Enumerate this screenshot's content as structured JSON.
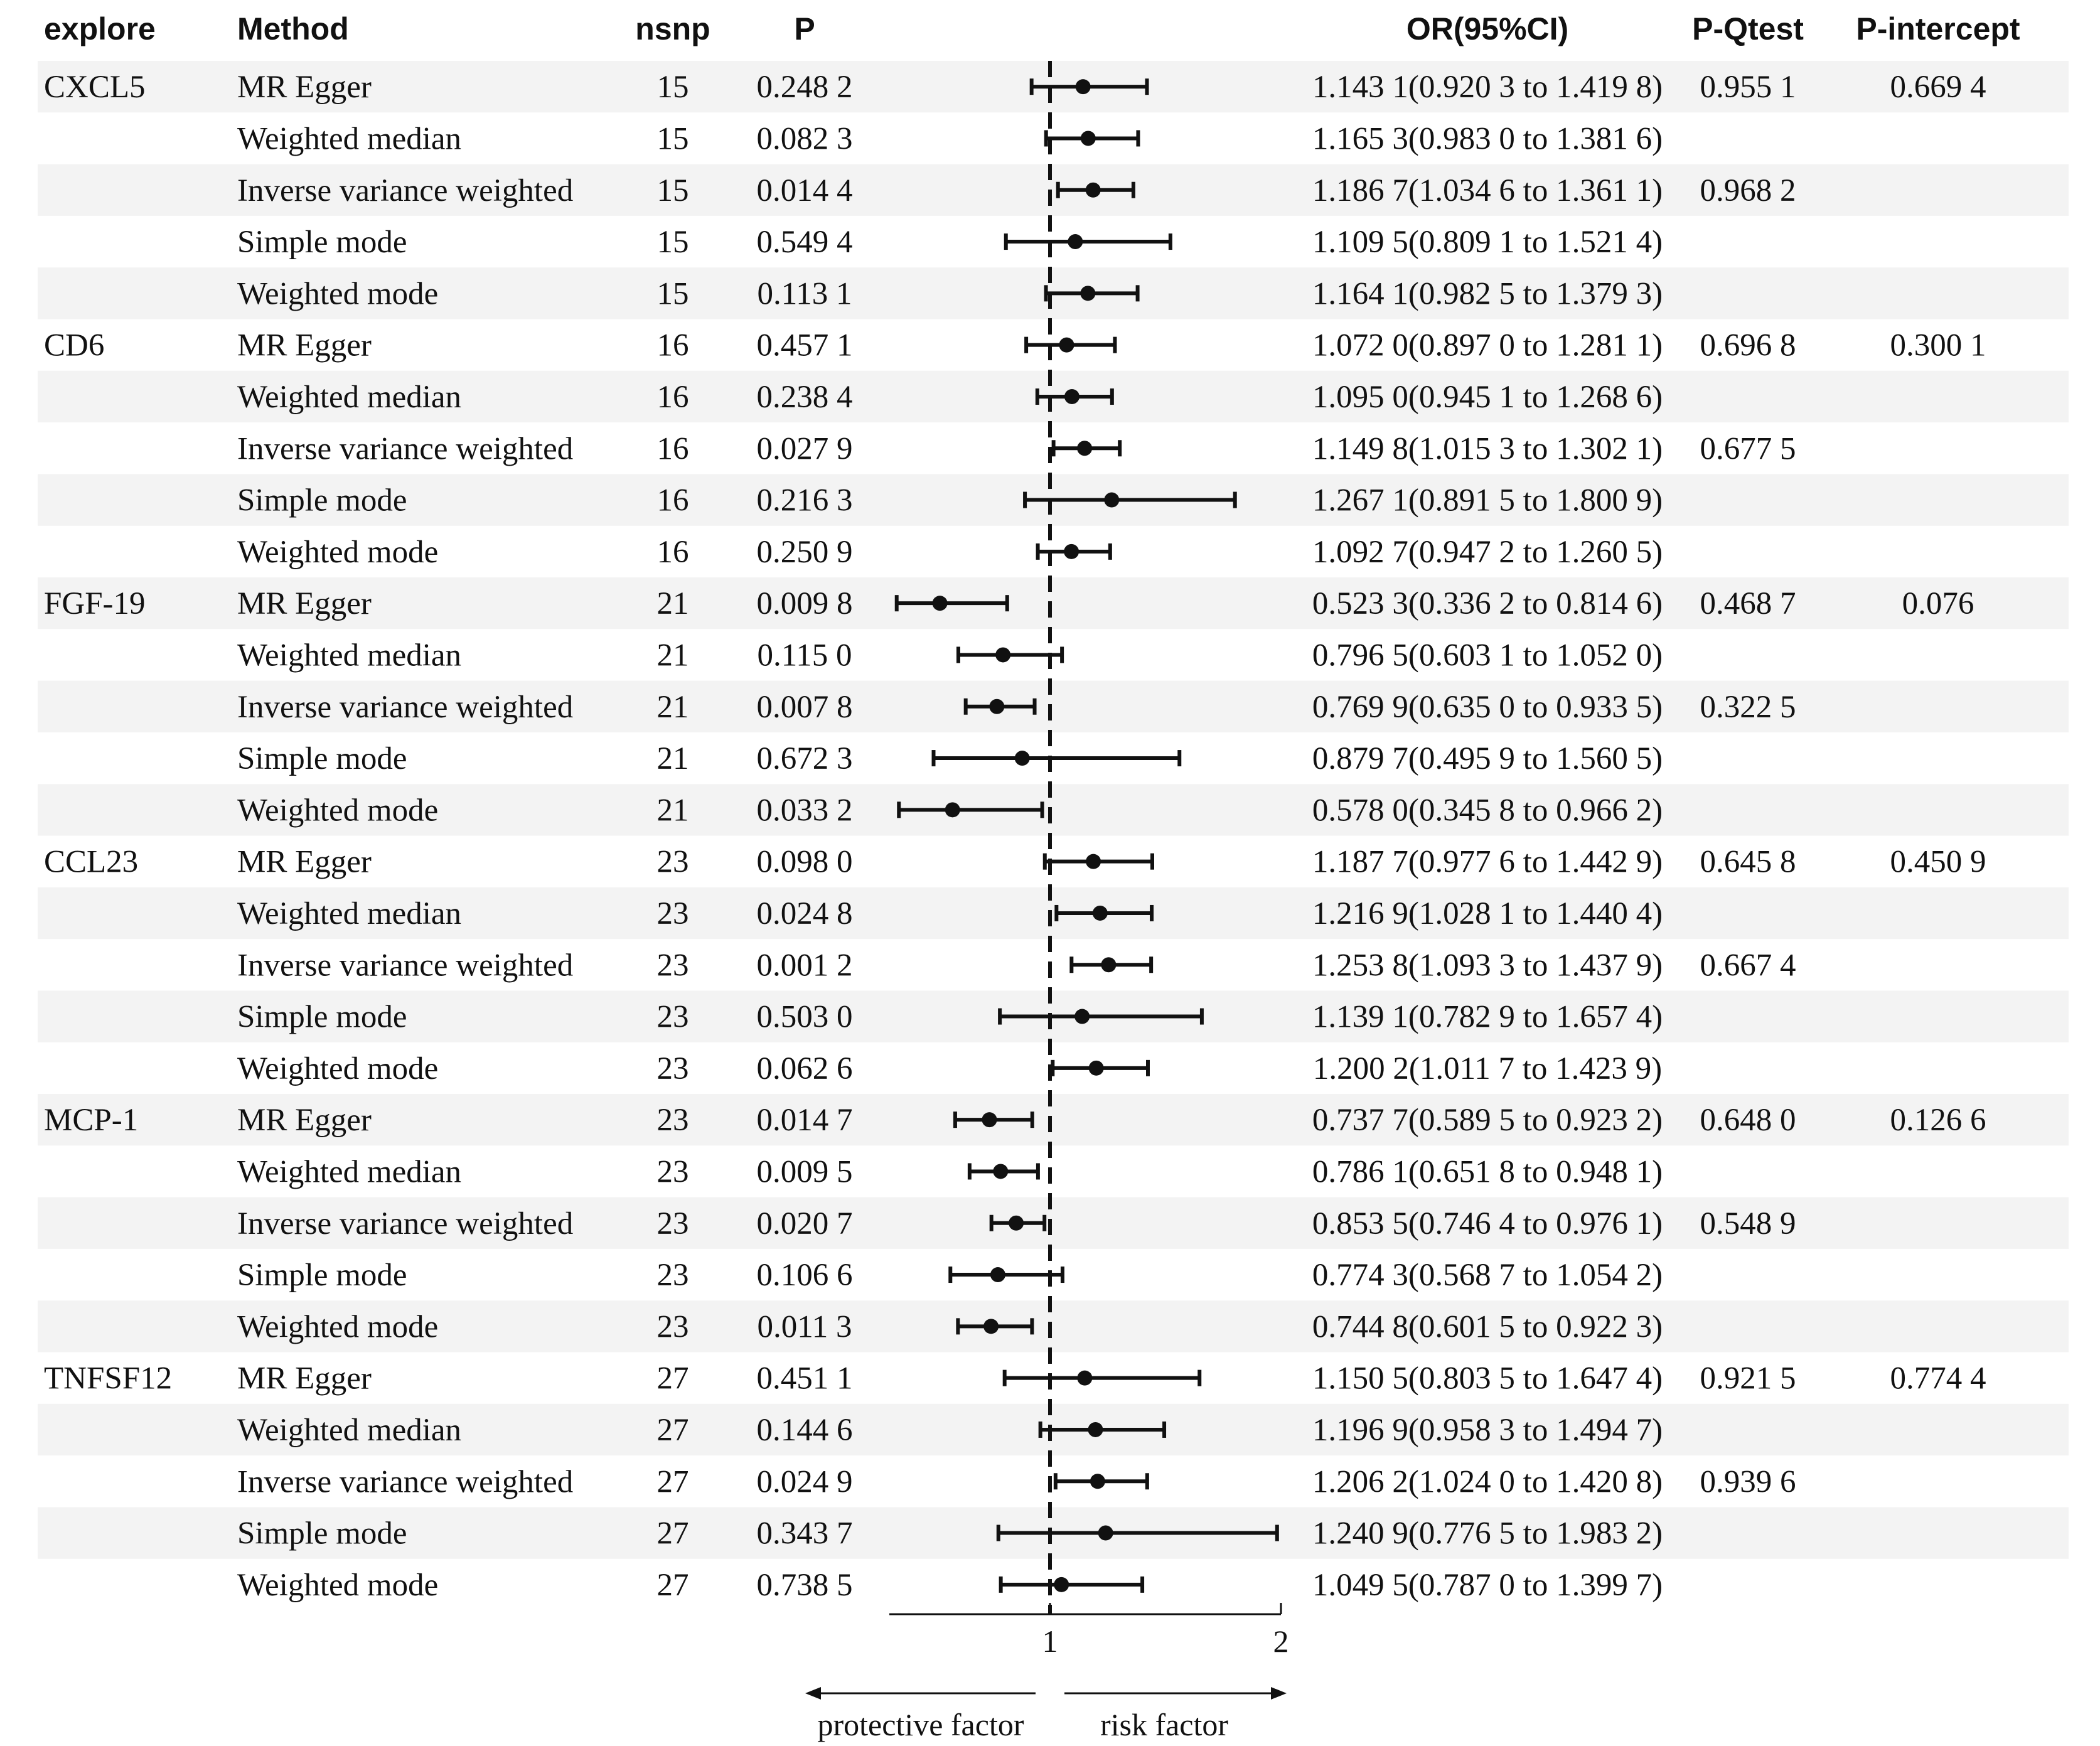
{
  "headers": {
    "explore": "explore",
    "method": "Method",
    "nsnp": "nsnp",
    "p": "P",
    "or": "OR(95%CI)",
    "pq": "P-Qtest",
    "pi": "P-intercept"
  },
  "rows": [
    {
      "explore": "CXCL5",
      "method": "MR Egger",
      "nsnp": "15",
      "p": "0.248 2",
      "or_text": "1.143 1(0.920 3 to 1.419 8)",
      "pq": "0.955 1",
      "pi": "0.669 4"
    },
    {
      "explore": "",
      "method": "Weighted median",
      "nsnp": "15",
      "p": "0.082 3",
      "or_text": "1.165 3(0.983 0 to 1.381 6)",
      "pq": "",
      "pi": ""
    },
    {
      "explore": "",
      "method": "Inverse variance weighted",
      "nsnp": "15",
      "p": "0.014 4",
      "or_text": "1.186 7(1.034 6 to 1.361 1)",
      "pq": "0.968 2",
      "pi": ""
    },
    {
      "explore": "",
      "method": "Simple mode",
      "nsnp": "15",
      "p": "0.549 4",
      "or_text": "1.109 5(0.809 1 to 1.521 4)",
      "pq": "",
      "pi": ""
    },
    {
      "explore": "",
      "method": "Weighted mode",
      "nsnp": "15",
      "p": "0.113 1",
      "or_text": "1.164 1(0.982 5 to 1.379 3)",
      "pq": "",
      "pi": ""
    },
    {
      "explore": "CD6",
      "method": "MR Egger",
      "nsnp": "16",
      "p": "0.457 1",
      "or_text": "1.072 0(0.897 0 to 1.281 1)",
      "pq": "0.696 8",
      "pi": "0.300 1"
    },
    {
      "explore": "",
      "method": "Weighted median",
      "nsnp": "16",
      "p": "0.238 4",
      "or_text": "1.095 0(0.945 1 to 1.268 6)",
      "pq": "",
      "pi": ""
    },
    {
      "explore": "",
      "method": "Inverse variance weighted",
      "nsnp": "16",
      "p": "0.027 9",
      "or_text": "1.149 8(1.015 3 to 1.302 1)",
      "pq": "0.677 5",
      "pi": ""
    },
    {
      "explore": "",
      "method": "Simple mode",
      "nsnp": "16",
      "p": "0.216 3",
      "or_text": "1.267 1(0.891 5 to 1.800 9)",
      "pq": "",
      "pi": ""
    },
    {
      "explore": "",
      "method": "Weighted mode",
      "nsnp": "16",
      "p": "0.250 9",
      "or_text": "1.092 7(0.947 2 to 1.260 5)",
      "pq": "",
      "pi": ""
    },
    {
      "explore": "FGF-19",
      "method": "MR Egger",
      "nsnp": "21",
      "p": "0.009 8",
      "or_text": "0.523 3(0.336 2 to 0.814 6)",
      "pq": "0.468 7",
      "pi": "0.076"
    },
    {
      "explore": "",
      "method": "Weighted median",
      "nsnp": "21",
      "p": "0.115 0",
      "or_text": "0.796 5(0.603 1 to 1.052 0)",
      "pq": "",
      "pi": ""
    },
    {
      "explore": "",
      "method": "Inverse variance weighted",
      "nsnp": "21",
      "p": "0.007 8",
      "or_text": "0.769 9(0.635 0 to 0.933 5)",
      "pq": "0.322 5",
      "pi": ""
    },
    {
      "explore": "",
      "method": "Simple mode",
      "nsnp": "21",
      "p": "0.672 3",
      "or_text": "0.879 7(0.495 9 to 1.560 5)",
      "pq": "",
      "pi": ""
    },
    {
      "explore": "",
      "method": "Weighted mode",
      "nsnp": "21",
      "p": "0.033 2",
      "or_text": "0.578 0(0.345 8 to 0.966 2)",
      "pq": "",
      "pi": ""
    },
    {
      "explore": "CCL23",
      "method": "MR Egger",
      "nsnp": "23",
      "p": "0.098 0",
      "or_text": "1.187 7(0.977 6 to 1.442 9)",
      "pq": "0.645 8",
      "pi": "0.450 9"
    },
    {
      "explore": "",
      "method": "Weighted median",
      "nsnp": "23",
      "p": "0.024 8",
      "or_text": "1.216 9(1.028 1 to 1.440 4)",
      "pq": "",
      "pi": ""
    },
    {
      "explore": "",
      "method": "Inverse variance weighted",
      "nsnp": "23",
      "p": "0.001 2",
      "or_text": "1.253 8(1.093 3 to 1.437 9)",
      "pq": "0.667 4",
      "pi": ""
    },
    {
      "explore": "",
      "method": "Simple mode",
      "nsnp": "23",
      "p": "0.503 0",
      "or_text": "1.139 1(0.782 9 to 1.657 4)",
      "pq": "",
      "pi": ""
    },
    {
      "explore": "",
      "method": "Weighted mode",
      "nsnp": "23",
      "p": "0.062 6",
      "or_text": "1.200 2(1.011 7 to 1.423 9)",
      "pq": "",
      "pi": ""
    },
    {
      "explore": "MCP-1",
      "method": "MR Egger",
      "nsnp": "23",
      "p": "0.014 7",
      "or_text": "0.737 7(0.589 5 to 0.923 2)",
      "pq": "0.648 0",
      "pi": "0.126 6"
    },
    {
      "explore": "",
      "method": "Weighted median",
      "nsnp": "23",
      "p": "0.009 5",
      "or_text": "0.786 1(0.651 8 to 0.948 1)",
      "pq": "",
      "pi": ""
    },
    {
      "explore": "",
      "method": "Inverse variance weighted",
      "nsnp": "23",
      "p": "0.020 7",
      "or_text": "0.853 5(0.746 4 to 0.976 1)",
      "pq": "0.548 9",
      "pi": ""
    },
    {
      "explore": "",
      "method": "Simple mode",
      "nsnp": "23",
      "p": "0.106 6",
      "or_text": "0.774 3(0.568 7 to 1.054 2)",
      "pq": "",
      "pi": ""
    },
    {
      "explore": "",
      "method": "Weighted mode",
      "nsnp": "23",
      "p": "0.011 3",
      "or_text": "0.744 8(0.601 5 to 0.922 3)",
      "pq": "",
      "pi": ""
    },
    {
      "explore": "TNFSF12",
      "method": "MR Egger",
      "nsnp": "27",
      "p": "0.451 1",
      "or_text": "1.150 5(0.803 5 to 1.647 4)",
      "pq": "0.921 5",
      "pi": "0.774 4"
    },
    {
      "explore": "",
      "method": "Weighted median",
      "nsnp": "27",
      "p": "0.144 6",
      "or_text": "1.196 9(0.958 3 to 1.494 7)",
      "pq": "",
      "pi": ""
    },
    {
      "explore": "",
      "method": "Inverse variance weighted",
      "nsnp": "27",
      "p": "0.024 9",
      "or_text": "1.206 2(1.024 0 to 1.420 8)",
      "pq": "0.939 6",
      "pi": ""
    },
    {
      "explore": "",
      "method": "Simple mode",
      "nsnp": "27",
      "p": "0.343 7",
      "or_text": "1.240 9(0.776 5 to 1.983 2)",
      "pq": "",
      "pi": ""
    },
    {
      "explore": "",
      "method": "Weighted mode",
      "nsnp": "27",
      "p": "0.738 5",
      "or_text": "1.049 5(0.787 0 to 1.399 7)",
      "pq": "",
      "pi": ""
    }
  ],
  "chart_data": {
    "type": "forest",
    "x_ticks": [
      1,
      2
    ],
    "xlim": [
      0.3,
      2.0
    ],
    "reference_line": 1,
    "grid": false,
    "annotations": {
      "left": "protective factor",
      "right": "risk factor"
    },
    "series": [
      {
        "or": [
          1.1431,
          1.1653,
          1.1867,
          1.1095,
          1.1641,
          1.072,
          1.095,
          1.1498,
          1.2671,
          1.0927,
          0.5233,
          0.7965,
          0.7699,
          0.8797,
          0.578,
          1.1877,
          1.2169,
          1.2538,
          1.1391,
          1.2002,
          0.7377,
          0.7861,
          0.8535,
          0.7743,
          0.7448,
          1.1505,
          1.1969,
          1.2062,
          1.2409,
          1.0495
        ],
        "lower": [
          0.9203,
          0.983,
          1.0346,
          0.8091,
          0.9825,
          0.897,
          0.9451,
          1.0153,
          0.8915,
          0.9472,
          0.3362,
          0.6031,
          0.635,
          0.4959,
          0.3458,
          0.9776,
          1.0281,
          1.0933,
          0.7829,
          1.0117,
          0.5895,
          0.6518,
          0.7464,
          0.5687,
          0.6015,
          0.8035,
          0.9583,
          1.024,
          0.7765,
          0.787
        ],
        "upper": [
          1.4198,
          1.3816,
          1.3611,
          1.5214,
          1.3793,
          1.2811,
          1.2686,
          1.3021,
          1.8009,
          1.2605,
          0.8146,
          1.052,
          0.9335,
          1.5605,
          0.9662,
          1.4429,
          1.4404,
          1.4379,
          1.6574,
          1.4239,
          0.9232,
          0.9481,
          0.9761,
          1.0542,
          0.9223,
          1.6474,
          1.4947,
          1.4208,
          1.9832,
          1.3997
        ]
      }
    ]
  }
}
